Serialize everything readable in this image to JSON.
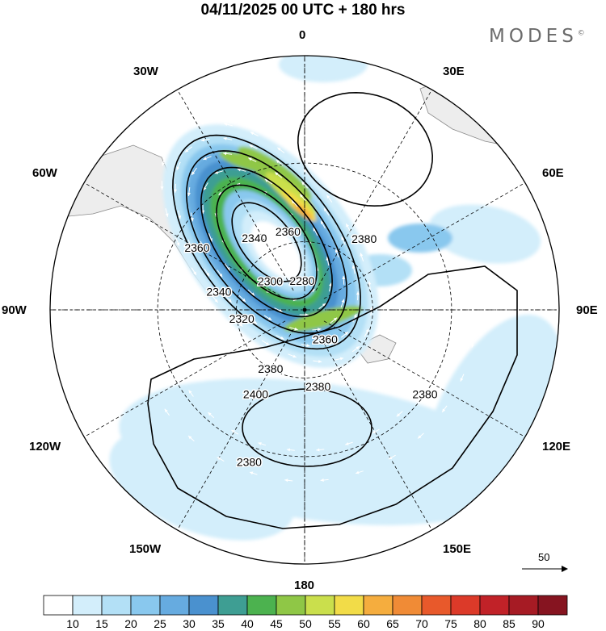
{
  "header": {
    "title": "04/11/2025  00 UTC  + 180 hrs",
    "brand": "MODES",
    "brand_mark": "©"
  },
  "longitude_labels": [
    "0",
    "30E",
    "60E",
    "90E",
    "120E",
    "150E",
    "180",
    "150W",
    "120W",
    "90W",
    "60W",
    "30W"
  ],
  "contour_labels": [
    "2280",
    "2300",
    "2320",
    "2340",
    "2360",
    "2380",
    "2400"
  ],
  "contour_label_instances": [
    {
      "text": "2340",
      "lon": -35,
      "lat": 52
    },
    {
      "text": "2360",
      "lon": -12,
      "lat": 55
    },
    {
      "text": "2300",
      "lon": -50,
      "lat": 70
    },
    {
      "text": "2280",
      "lon": -5,
      "lat": 77
    },
    {
      "text": "2380",
      "lon": 40,
      "lat": 50
    },
    {
      "text": "2360",
      "lon": -60,
      "lat": 38
    },
    {
      "text": "2340",
      "lon": -78,
      "lat": 52
    },
    {
      "text": "2320",
      "lon": -98,
      "lat": 62
    },
    {
      "text": "2360",
      "lon": 145,
      "lat": 74
    },
    {
      "text": "2380",
      "lon": -150,
      "lat": 60
    },
    {
      "text": "2380",
      "lon": 170,
      "lat": 56
    },
    {
      "text": "2400",
      "lon": -150,
      "lat": 48
    },
    {
      "text": "2380",
      "lon": 125,
      "lat": 30
    },
    {
      "text": "2380",
      "lon": -160,
      "lat": 25
    }
  ],
  "vector_scale": {
    "label": "50"
  },
  "colorbar": {
    "levels": [
      "10",
      "15",
      "20",
      "25",
      "30",
      "35",
      "40",
      "45",
      "50",
      "55",
      "60",
      "65",
      "70",
      "75",
      "80",
      "85",
      "90"
    ],
    "colors": [
      "#ffffff",
      "#d3eefb",
      "#b3e0f6",
      "#89c8ee",
      "#66abe0",
      "#4a91cf",
      "#3e9e93",
      "#4cb24f",
      "#8fc746",
      "#cadf4c",
      "#f2dc48",
      "#f5ad3e",
      "#f08b36",
      "#e8592b",
      "#dc3a29",
      "#c12228",
      "#a61b24",
      "#861420"
    ]
  },
  "colors": {
    "land": "#ededed",
    "coast": "#8a8a8a",
    "grid": "#000000",
    "contour": "#000000",
    "vector": "#ffffff"
  }
}
